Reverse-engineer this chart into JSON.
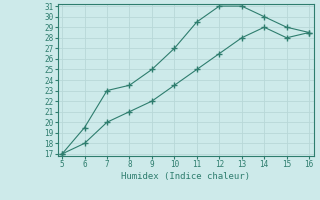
{
  "line1_x": [
    5,
    6,
    7,
    8,
    9,
    10,
    11,
    12,
    13,
    14,
    15,
    16
  ],
  "line1_y": [
    17,
    19.5,
    23,
    23.5,
    25,
    27,
    29.5,
    31,
    31,
    30,
    29,
    28.5
  ],
  "line2_x": [
    5,
    6,
    7,
    8,
    9,
    10,
    11,
    12,
    13,
    14,
    15,
    16
  ],
  "line2_y": [
    17,
    18,
    20,
    21,
    22,
    23.5,
    25,
    26.5,
    28,
    29,
    28,
    28.5
  ],
  "color": "#2e7d6e",
  "xlabel": "Humidex (Indice chaleur)",
  "xlim": [
    5,
    16
  ],
  "ylim": [
    17,
    31
  ],
  "yticks": [
    17,
    18,
    19,
    20,
    21,
    22,
    23,
    24,
    25,
    26,
    27,
    28,
    29,
    30,
    31
  ],
  "xticks": [
    5,
    6,
    7,
    8,
    9,
    10,
    11,
    12,
    13,
    14,
    15,
    16
  ],
  "bg_color": "#cdeaea",
  "grid_color": "#b8d8d8",
  "marker": "+"
}
